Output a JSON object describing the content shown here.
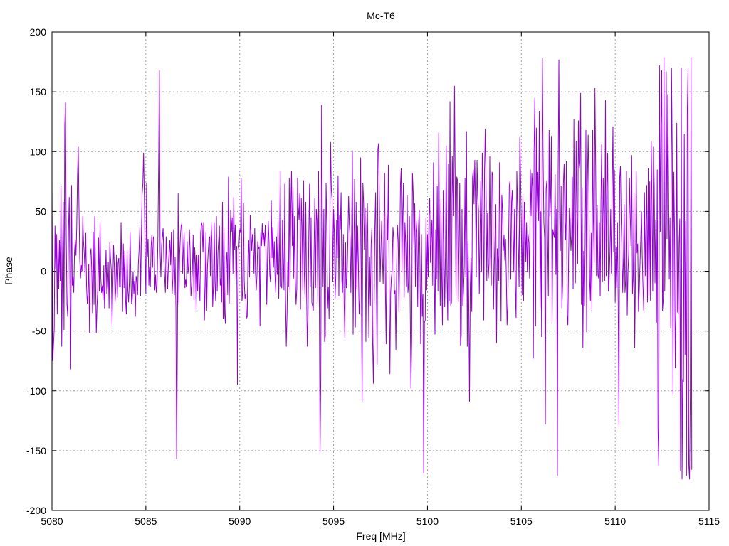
{
  "chart_data": {
    "type": "line",
    "title": "Mc-T6",
    "xlabel": "Freq [MHz]",
    "ylabel": "Phase",
    "xlim": [
      5080,
      5115
    ],
    "ylim": [
      -200,
      200
    ],
    "xticks": [
      5080,
      5085,
      5090,
      5095,
      5100,
      5105,
      5110,
      5115
    ],
    "yticks": [
      -200,
      -150,
      -100,
      -50,
      0,
      50,
      100,
      150,
      200
    ],
    "grid": true,
    "color": "#9400d3",
    "series": [
      {
        "x_start": 5080,
        "x_step": 0.04,
        "values": [
          72,
          -75,
          -62,
          -48,
          38,
          2,
          31,
          -36,
          31,
          -15,
          26,
          -8,
          71,
          -63,
          12,
          58,
          -49,
          122,
          141,
          28,
          -28,
          -38,
          34,
          62,
          -17,
          -82,
          72,
          -12,
          -4,
          -18,
          16,
          26,
          13,
          38,
          81,
          104,
          52,
          10,
          -6,
          5,
          0,
          46,
          25,
          15,
          -2,
          32,
          -12,
          -27,
          -18,
          6,
          -52,
          14,
          19,
          0,
          -35,
          33,
          -28,
          46,
          -3,
          -52,
          -29,
          -14,
          28,
          -17,
          42,
          -5,
          -18,
          -12,
          -24,
          5,
          -31,
          -6,
          18,
          -19,
          -12,
          8,
          -31,
          24,
          10,
          1,
          -45,
          -12,
          22,
          5,
          -26,
          -14,
          14,
          -22,
          7,
          11,
          -13,
          -13,
          41,
          0,
          -34,
          23,
          -14,
          17,
          -24,
          -36,
          17,
          -16,
          -26,
          -9,
          33,
          -4,
          -27,
          -23,
          0,
          -19,
          -8,
          -38,
          -4,
          -8,
          -20,
          6,
          18,
          37,
          -21,
          28,
          64,
          73,
          99,
          61,
          14,
          -19,
          74,
          12,
          27,
          -12,
          4,
          -13,
          21,
          30,
          3,
          29,
          27,
          -16,
          -3,
          -18,
          -11,
          26,
          89,
          168,
          16,
          -5,
          22,
          28,
          36,
          9,
          -4,
          -18,
          29,
          8,
          -15,
          5,
          16,
          26,
          5,
          33,
          -19,
          -6,
          35,
          -20,
          12,
          -31,
          -157,
          -64,
          65,
          -28,
          14,
          29,
          38,
          40,
          -2,
          18,
          33,
          -14,
          -7,
          -13,
          25,
          -2,
          4,
          35,
          16,
          -21,
          -13,
          1,
          30,
          -24,
          20,
          6,
          -33,
          14,
          -17,
          14,
          -10,
          -25,
          32,
          41,
          38,
          16,
          41,
          -41,
          -12,
          33,
          -33,
          3,
          16,
          26,
          29,
          -4,
          40,
          24,
          -30,
          -12,
          41,
          -9,
          -25,
          46,
          -17,
          16,
          27,
          38,
          -12,
          -6,
          -26,
          58,
          -40,
          36,
          -36,
          -44,
          8,
          16,
          -20,
          79,
          -27,
          17,
          51,
          33,
          45,
          -2,
          62,
          18,
          39,
          -7,
          21,
          -95,
          18,
          21,
          35,
          32,
          78,
          -25,
          -17,
          57,
          -7,
          -23,
          -19,
          -39,
          -38,
          12,
          26,
          -5,
          47,
          33,
          17,
          31,
          21,
          -2,
          36,
          -1,
          -16,
          -3,
          25,
          19,
          20,
          -46,
          32,
          21,
          40,
          25,
          32,
          21,
          39,
          19,
          -28,
          11,
          42,
          25,
          -3,
          -9,
          59,
          11,
          37,
          3,
          25,
          -4,
          -18,
          29,
          -3,
          43,
          -23,
          24,
          84,
          -12,
          -14,
          43,
          11,
          -16,
          73,
          -22,
          -63,
          -37,
          8,
          -13,
          78,
          -18,
          52,
          84,
          21,
          70,
          -6,
          46,
          -7,
          -28,
          -15,
          78,
          54,
          43,
          65,
          -32,
          61,
          38,
          -16,
          76,
          -1,
          -23,
          58,
          -16,
          -63,
          -36,
          31,
          73,
          -13,
          45,
          -26,
          -29,
          -33,
          16,
          61,
          -14,
          52,
          42,
          -28,
          84,
          -27,
          -152,
          -87,
          139,
          48,
          -13,
          52,
          -59,
          -54,
          74,
          41,
          -31,
          -13,
          -40,
          33,
          108,
          68,
          60,
          -9,
          52,
          32,
          -23,
          -3,
          43,
          11,
          80,
          -21,
          47,
          35,
          66,
          -8,
          -18,
          31,
          -25,
          -56,
          24,
          -14,
          -5,
          26,
          63,
          39,
          28,
          -18,
          32,
          101,
          -53,
          14,
          77,
          -47,
          58,
          -15,
          38,
          6,
          -36,
          -24,
          95,
          -14,
          -109,
          74,
          58,
          18,
          53,
          -59,
          37,
          57,
          3,
          -56,
          12,
          -29,
          22,
          36,
          -58,
          -94,
          -34,
          37,
          66,
          -12,
          -78,
          102,
          107,
          57,
          -9,
          17,
          42,
          12,
          -11,
          34,
          82,
          -17,
          -61,
          48,
          26,
          89,
          -10,
          -86,
          -18,
          -5,
          0,
          37,
          28,
          -19,
          -16,
          -66,
          5,
          39,
          26,
          -34,
          11,
          72,
          86,
          -1,
          49,
          74,
          -22,
          41,
          24,
          -13,
          64,
          -18,
          -10,
          46,
          -30,
          -98,
          -59,
          82,
          66,
          22,
          57,
          -13,
          42,
          32,
          -30,
          36,
          51,
          9,
          -61,
          31,
          -38,
          -19,
          -169,
          -43,
          -41,
          45,
          -16,
          31,
          -5,
          47,
          61,
          7,
          27,
          43,
          -12,
          91,
          2,
          -53,
          35,
          -7,
          71,
          -17,
          116,
          36,
          -29,
          59,
          -3,
          -45,
          68,
          17,
          -30,
          18,
          105,
          -3,
          -41,
          90,
          -25,
          142,
          -29,
          -26,
          96,
          66,
          46,
          155,
          70,
          -21,
          79,
          76,
          -26,
          23,
          74,
          -62,
          -53,
          52,
          -29,
          -17,
          4,
          78,
          -5,
          117,
          -63,
          25,
          -27,
          -109,
          -12,
          11,
          -34,
          78,
          85,
          56,
          93,
          54,
          -5,
          93,
          62,
          51,
          -19,
          32,
          76,
          -1,
          99,
          67,
          -41,
          85,
          119,
          72,
          -8,
          49,
          -6,
          6,
          96,
          12,
          -12,
          83,
          79,
          -32,
          6,
          31,
          56,
          -60,
          19,
          13,
          -8,
          91,
          33,
          -42,
          64,
          51,
          17,
          30,
          9,
          27,
          -4,
          -45,
          -29,
          22,
          71,
          76,
          -7,
          58,
          68,
          36,
          -1,
          52,
          -14,
          -39,
          84,
          54,
          22,
          -13,
          112,
          80,
          39,
          -20,
          63,
          -25,
          58,
          41,
          8,
          41,
          -1,
          31,
          24,
          -6,
          85,
          46,
          82,
          70,
          -73,
          100,
          145,
          -46,
          120,
          49,
          83,
          42,
          134,
          -31,
          50,
          -55,
          178,
          96,
          41,
          28,
          -128,
          69,
          76,
          26,
          -21,
          118,
          46,
          62,
          113,
          -43,
          35,
          31,
          28,
          81,
          -3,
          52,
          -171,
          80,
          177,
          46,
          17,
          71,
          -31,
          -11,
          73,
          90,
          42,
          26,
          92,
          -37,
          -45,
          14,
          53,
          44,
          17,
          29,
          79,
          -15,
          127,
          31,
          -10,
          109,
          52,
          6,
          126,
          85,
          91,
          149,
          -28,
          70,
          -64,
          17,
          -29,
          23,
          118,
          -51,
          74,
          114,
          67,
          -8,
          -25,
          32,
          -33,
          118,
          41,
          7,
          153,
          88,
          -4,
          55,
          -3,
          -6,
          41,
          -21,
          57,
          106,
          -9,
          78,
          48,
          -8,
          143,
          -4,
          71,
          99,
          -17,
          -7,
          16,
          52,
          -2,
          71,
          121,
          16,
          85,
          -26,
          20,
          -14,
          41,
          -30,
          -129,
          78,
          88,
          40,
          16,
          -18,
          12,
          56,
          -18,
          -8,
          84,
          -37,
          -1,
          15,
          78,
          47,
          21,
          97,
          -19,
          -5,
          64,
          -64,
          -2,
          84,
          15,
          23,
          -34,
          -17,
          5,
          27,
          50,
          13,
          -13,
          -33,
          66,
          -4,
          38,
          72,
          -26,
          86,
          -21,
          75,
          -25,
          109,
          54,
          -17,
          104,
          71,
          -10,
          43,
          -43,
          85,
          -132,
          -163,
          172,
          33,
          121,
          168,
          -33,
          -24,
          179,
          -17,
          42,
          167,
          27,
          148,
          81,
          -7,
          45,
          -48,
          170,
          97,
          -103,
          83,
          36,
          -81,
          -31,
          124,
          -34,
          -35,
          22,
          44,
          -167,
          170,
          -174,
          -91,
          -92,
          115,
          -70,
          42,
          -171,
          131,
          169,
          -162,
          -174,
          -104,
          179,
          -166
        ]
      }
    ]
  }
}
